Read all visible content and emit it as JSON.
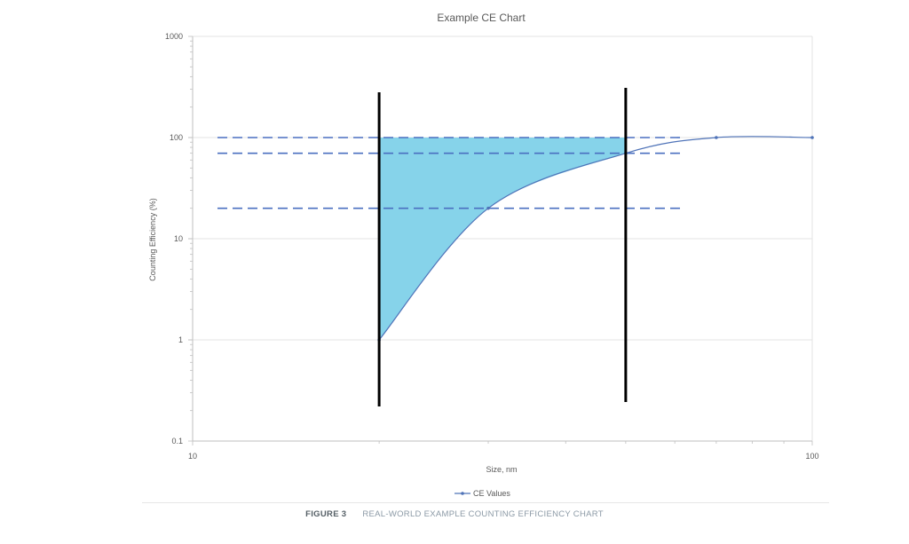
{
  "chart_data": {
    "type": "line",
    "title": "Example CE Chart",
    "xlabel": "Size, nm",
    "ylabel": "Counting Efficiency (%)",
    "x_scale": "log",
    "y_scale": "log",
    "xlim": [
      10,
      100
    ],
    "ylim": [
      0.1,
      1000
    ],
    "x_ticks": [
      "10",
      "100"
    ],
    "y_ticks": [
      "0.1",
      "1",
      "10",
      "100",
      "1000"
    ],
    "grid": true,
    "legend_position": "bottom",
    "series": [
      {
        "name": "CE Values",
        "color": "#4f73b8",
        "marker": "circle",
        "points": [
          {
            "x": 20,
            "y": 1
          },
          {
            "x": 30,
            "y": 20
          },
          {
            "x": 50,
            "y": 70
          },
          {
            "x": 70,
            "y": 100
          },
          {
            "x": 100,
            "y": 100
          }
        ]
      }
    ],
    "reference_lines": {
      "horizontal_dashed": [
        100,
        70,
        20
      ],
      "horizontal_color": "#4a6fc0",
      "vertical_solid": [
        20,
        50
      ],
      "vertical_color": "#000000"
    },
    "shaded_region": {
      "x_from": 20,
      "x_to": 50,
      "y_top": 100,
      "bounded_below_by": "CE Values",
      "color": "#86d3ea"
    }
  },
  "caption": {
    "label": "FIGURE 3",
    "text": "REAL-WORLD EXAMPLE COUNTING EFFICIENCY CHART"
  }
}
